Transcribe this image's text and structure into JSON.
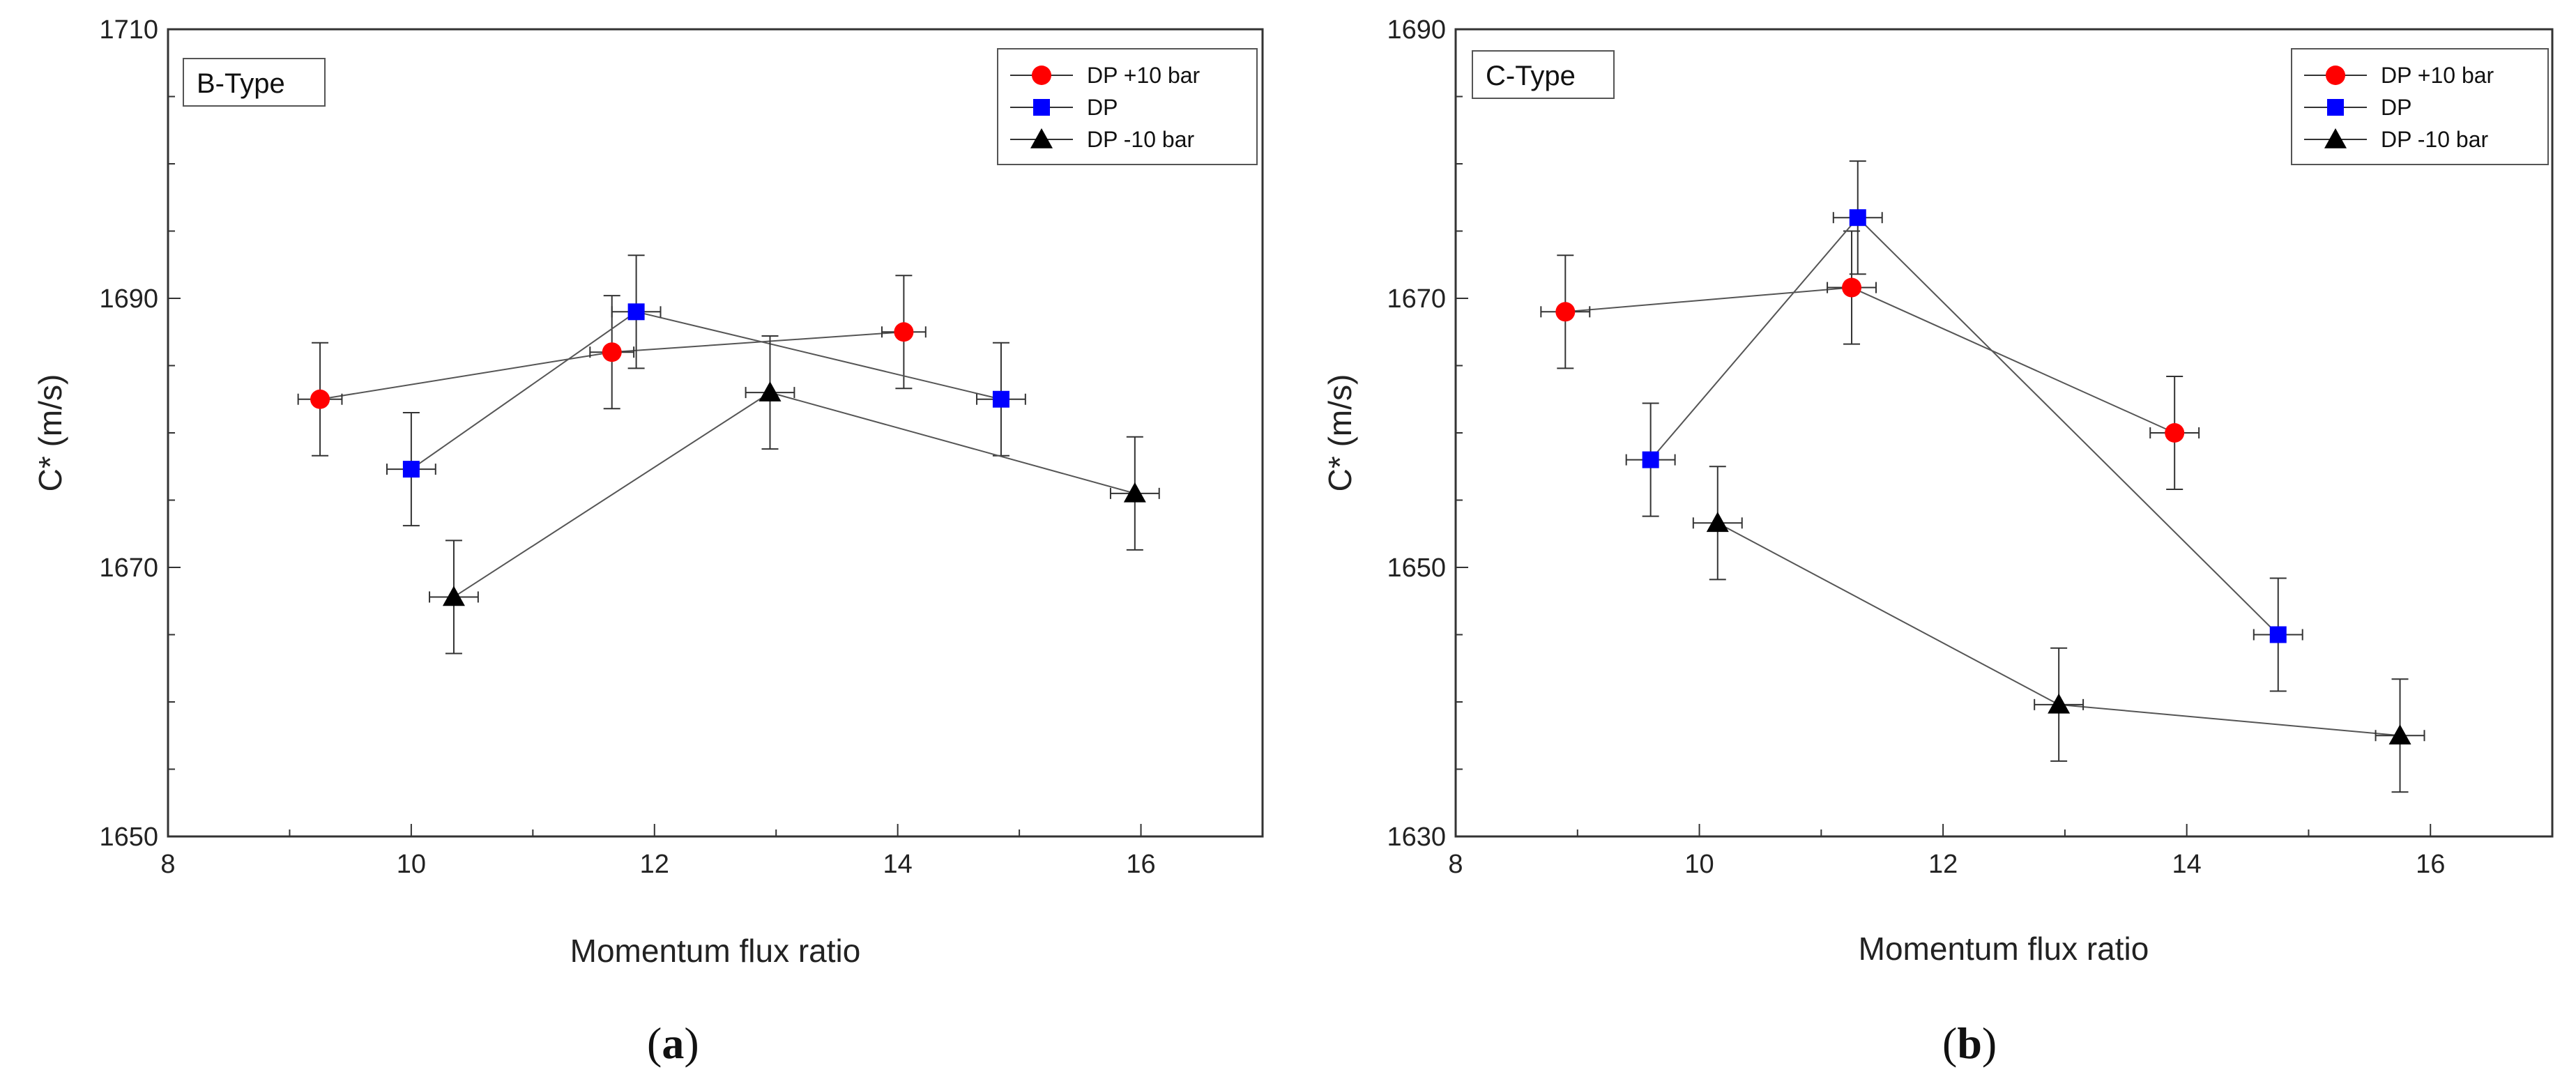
{
  "figure": {
    "captions": [
      "(a)",
      "(b)"
    ],
    "caption_letters": [
      "a",
      "b"
    ]
  },
  "chart_data": [
    {
      "type": "scatter",
      "panel_label": "B-Type",
      "xlabel": "Momentum flux ratio",
      "ylabel": "C* (m/s)",
      "xlim": [
        8,
        17
      ],
      "ylim": [
        1650,
        1710
      ],
      "xticks": [
        8,
        10,
        12,
        14,
        16
      ],
      "yticks": [
        1650,
        1670,
        1690,
        1710
      ],
      "legend_position": "top-right",
      "series": [
        {
          "name": "DP +10 bar",
          "marker": "circle",
          "color": "#ff0000",
          "points": [
            {
              "x": 9.25,
              "y": 1682.5,
              "xerr": 0.18,
              "yerr": 4.2
            },
            {
              "x": 11.65,
              "y": 1686.0,
              "xerr": 0.18,
              "yerr": 4.2
            },
            {
              "x": 14.05,
              "y": 1687.5,
              "xerr": 0.18,
              "yerr": 4.2
            }
          ]
        },
        {
          "name": "DP",
          "marker": "square",
          "color": "#0000ff",
          "points": [
            {
              "x": 10.0,
              "y": 1677.3,
              "xerr": 0.2,
              "yerr": 4.2
            },
            {
              "x": 11.85,
              "y": 1689.0,
              "xerr": 0.2,
              "yerr": 4.2
            },
            {
              "x": 14.85,
              "y": 1682.5,
              "xerr": 0.2,
              "yerr": 4.2
            }
          ]
        },
        {
          "name": "DP -10 bar",
          "marker": "triangle",
          "color": "#000000",
          "points": [
            {
              "x": 10.35,
              "y": 1667.8,
              "xerr": 0.2,
              "yerr": 4.2
            },
            {
              "x": 12.95,
              "y": 1683.0,
              "xerr": 0.2,
              "yerr": 4.2
            },
            {
              "x": 15.95,
              "y": 1675.5,
              "xerr": 0.2,
              "yerr": 4.2
            }
          ]
        }
      ]
    },
    {
      "type": "scatter",
      "panel_label": "C-Type",
      "xlabel": "Momentum flux ratio",
      "ylabel": "C* (m/s)",
      "xlim": [
        8,
        17
      ],
      "ylim": [
        1630,
        1690
      ],
      "xticks": [
        8,
        10,
        12,
        14,
        16
      ],
      "yticks": [
        1630,
        1650,
        1670,
        1690
      ],
      "legend_position": "top-right",
      "series": [
        {
          "name": "DP +10 bar",
          "marker": "circle",
          "color": "#ff0000",
          "points": [
            {
              "x": 8.9,
              "y": 1669.0,
              "xerr": 0.2,
              "yerr": 4.2
            },
            {
              "x": 11.25,
              "y": 1670.8,
              "xerr": 0.2,
              "yerr": 4.2
            },
            {
              "x": 13.9,
              "y": 1660.0,
              "xerr": 0.2,
              "yerr": 4.2
            }
          ]
        },
        {
          "name": "DP",
          "marker": "square",
          "color": "#0000ff",
          "points": [
            {
              "x": 9.6,
              "y": 1658.0,
              "xerr": 0.2,
              "yerr": 4.2
            },
            {
              "x": 11.3,
              "y": 1676.0,
              "xerr": 0.2,
              "yerr": 4.2
            },
            {
              "x": 14.75,
              "y": 1645.0,
              "xerr": 0.2,
              "yerr": 4.2
            }
          ]
        },
        {
          "name": "DP -10 bar",
          "marker": "triangle",
          "color": "#000000",
          "points": [
            {
              "x": 10.15,
              "y": 1653.3,
              "xerr": 0.2,
              "yerr": 4.2
            },
            {
              "x": 12.95,
              "y": 1639.8,
              "xerr": 0.2,
              "yerr": 4.2
            },
            {
              "x": 15.75,
              "y": 1637.5,
              "xerr": 0.2,
              "yerr": 4.2
            }
          ]
        }
      ]
    }
  ]
}
